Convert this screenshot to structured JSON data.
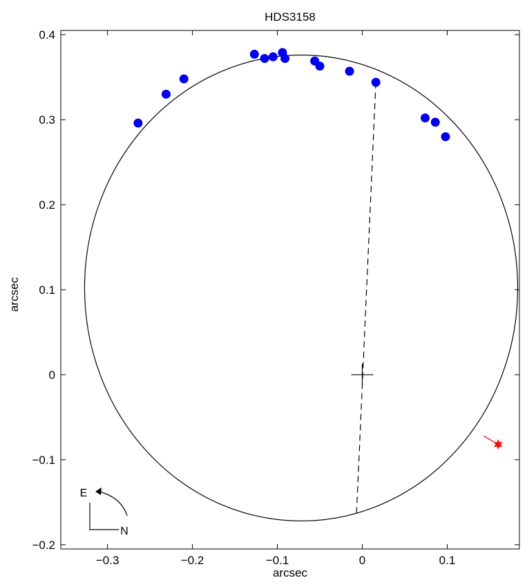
{
  "chart_data": {
    "type": "scatter",
    "title": "HDS3158",
    "xlabel": "arcsec",
    "ylabel": "arcsec",
    "xlim": [
      -0.355,
      0.185
    ],
    "ylim": [
      -0.205,
      0.405
    ],
    "xticks": [
      -0.3,
      -0.2,
      -0.1,
      0,
      0.1
    ],
    "xtick_labels": [
      "−0.3",
      "−0.2",
      "−0.1",
      "0",
      "0.1"
    ],
    "yticks": [
      -0.2,
      -0.1,
      0,
      0.1,
      0.2,
      0.3,
      0.4
    ],
    "ytick_labels": [
      "−0.2",
      "−0.1",
      "0",
      "0.1",
      "0.2",
      "0.3",
      "0.4"
    ],
    "grid": false,
    "legend": "none",
    "orbit": {
      "center": [
        -0.072,
        0.102
      ],
      "semi_axes": [
        0.255,
        0.274
      ],
      "rotation_deg": 0
    },
    "line_of_apsides": {
      "from": [
        0.016,
        0.344
      ],
      "to": [
        -0.007,
        -0.168
      ]
    },
    "primary_position": [
      0.0,
      0.0
    ],
    "observations": {
      "x": [
        -0.264,
        -0.231,
        -0.21,
        -0.127,
        -0.115,
        -0.105,
        -0.094,
        -0.091,
        -0.056,
        -0.05,
        -0.015,
        0.016,
        0.074,
        0.086,
        0.098
      ],
      "y": [
        0.296,
        0.33,
        0.348,
        0.377,
        0.372,
        0.374,
        0.379,
        0.372,
        0.369,
        0.363,
        0.357,
        0.344,
        0.302,
        0.297,
        0.28
      ]
    },
    "outlier": {
      "point": [
        0.16,
        -0.082
      ],
      "orbit_point": [
        0.143,
        -0.072
      ]
    },
    "compass": {
      "east_label": "E",
      "north_label": "N"
    },
    "colors": {
      "observation": "#0000ee",
      "outlier": "#ee1111",
      "ink": "#000000"
    }
  }
}
